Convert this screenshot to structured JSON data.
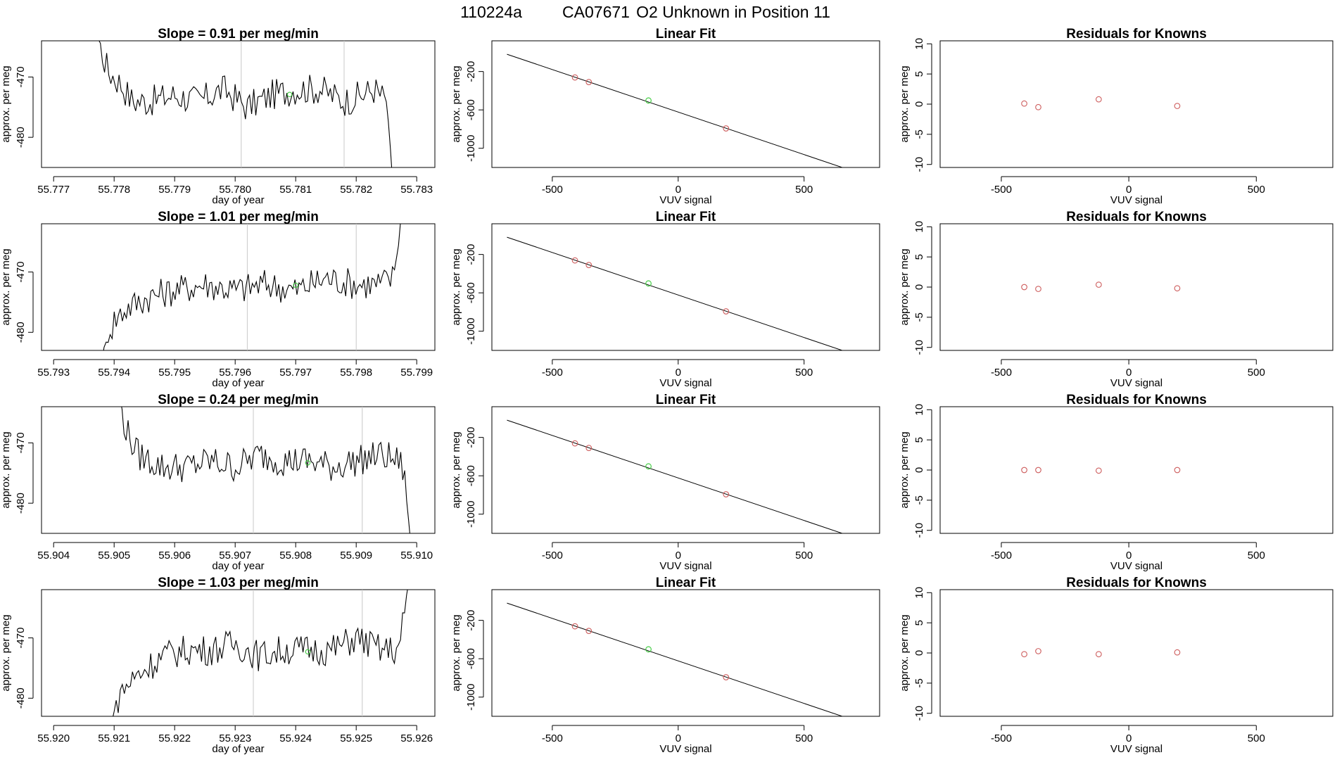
{
  "header": {
    "run": "110224a",
    "tank": "CA07671",
    "description": "O2 Unknown in Position  11"
  },
  "colors": {
    "trace": "#000000",
    "marker_vline": "#c8c8c8",
    "known_point": "#cd5c5c",
    "unknown_point": "#44cc44",
    "fit_line": "#000000"
  },
  "chart_data": [
    {
      "type": "line",
      "title": "Slope =  0.91  per meg/min",
      "xlabel": "day of year",
      "ylabel": "approx. per meg",
      "xlim": [
        55.7768,
        55.7833
      ],
      "ylim": [
        -485,
        -464
      ],
      "xticks": [
        "55.777",
        "55.778",
        "55.779",
        "55.780",
        "55.781",
        "55.782",
        "55.783"
      ],
      "yticks": [
        "-480",
        "-470"
      ],
      "x_start": 55.7775,
      "x_end": 55.7826,
      "reference_lines_x": [
        55.7801,
        55.7818
      ],
      "unknown_point": {
        "x": 55.7809,
        "y": -472.9
      },
      "series": [
        {
          "x": [
            55.7775,
            55.7778,
            55.7779,
            55.7781,
            55.7783,
            55.7786,
            55.779,
            55.7794,
            55.7798,
            55.7802,
            55.7806,
            55.781,
            55.7814,
            55.7818,
            55.7821,
            55.7823,
            55.7825,
            55.7826
          ],
          "y": [
            -455,
            -466,
            -469,
            -471,
            -474,
            -474,
            -473,
            -474,
            -472,
            -475,
            -473,
            -472,
            -472,
            -474,
            -473,
            -472,
            -474,
            -487
          ]
        }
      ]
    },
    {
      "type": "line",
      "title": "Slope =  1.01  per meg/min",
      "xlabel": "day of year",
      "ylabel": "approx. per meg",
      "xlim": [
        55.7928,
        55.7993
      ],
      "ylim": [
        -483,
        -462
      ],
      "xticks": [
        "55.793",
        "55.794",
        "55.795",
        "55.796",
        "55.797",
        "55.798",
        "55.799"
      ],
      "yticks": [
        "-480",
        "-470"
      ],
      "x_start": 55.7938,
      "x_end": 55.7988,
      "reference_lines_x": [
        55.7962,
        55.798
      ],
      "unknown_point": {
        "x": 55.797,
        "y": -472.2
      },
      "series": [
        {
          "x": [
            55.7938,
            55.794,
            55.7942,
            55.7946,
            55.795,
            55.7955,
            55.796,
            55.7965,
            55.797,
            55.7975,
            55.798,
            55.7984,
            55.7986,
            55.7987,
            55.7988
          ],
          "y": [
            -484,
            -478,
            -476,
            -474,
            -473,
            -472,
            -473,
            -472,
            -473,
            -471,
            -472,
            -472,
            -471,
            -465,
            -455
          ]
        }
      ]
    },
    {
      "type": "line",
      "title": "Slope =  0.24  per meg/min",
      "xlabel": "day of year",
      "ylabel": "approx. per meg",
      "xlim": [
        55.9038,
        55.9103
      ],
      "ylim": [
        -485,
        -464
      ],
      "xticks": [
        "55.904",
        "55.905",
        "55.906",
        "55.907",
        "55.908",
        "55.909",
        "55.910"
      ],
      "yticks": [
        "-480",
        "-470"
      ],
      "x_start": 55.905,
      "x_end": 55.9099,
      "reference_lines_x": [
        55.9073,
        55.9091
      ],
      "unknown_point": {
        "x": 55.9082,
        "y": -473.3
      },
      "series": [
        {
          "x": [
            55.905,
            55.9052,
            55.9054,
            55.9058,
            55.9062,
            55.9066,
            55.907,
            55.9074,
            55.9078,
            55.9082,
            55.9086,
            55.909,
            55.9094,
            55.9097,
            55.9098,
            55.9099
          ],
          "y": [
            -458,
            -468,
            -472,
            -474,
            -474,
            -473,
            -474,
            -472,
            -473,
            -473,
            -474,
            -473,
            -472,
            -473,
            -475,
            -487
          ]
        }
      ]
    },
    {
      "type": "line",
      "title": "Slope =  1.03  per meg/min",
      "xlabel": "day of year",
      "ylabel": "approx. per meg",
      "xlim": [
        55.9198,
        55.9263
      ],
      "ylim": [
        -483,
        -462
      ],
      "xticks": [
        "55.920",
        "55.921",
        "55.922",
        "55.923",
        "55.924",
        "55.925",
        "55.926"
      ],
      "yticks": [
        "-480",
        "-470"
      ],
      "x_start": 55.9209,
      "x_end": 55.9259,
      "reference_lines_x": [
        55.9233,
        55.9251
      ],
      "unknown_point": {
        "x": 55.9242,
        "y": -472.3
      },
      "series": [
        {
          "x": [
            55.9209,
            55.9211,
            55.9214,
            55.9218,
            55.9222,
            55.9226,
            55.923,
            55.9234,
            55.9238,
            55.9242,
            55.9246,
            55.925,
            55.9254,
            55.9257,
            55.9258,
            55.9259
          ],
          "y": [
            -485,
            -479,
            -476,
            -473,
            -472,
            -472,
            -471,
            -473,
            -472,
            -472,
            -472,
            -470,
            -472,
            -472,
            -466,
            -458
          ]
        }
      ]
    },
    {
      "type": "scatter",
      "title": "Linear Fit",
      "xlabel": "VUV signal",
      "ylabel": "approx. per meg",
      "xlim": [
        -740,
        800
      ],
      "ylim": [
        -1200,
        120
      ],
      "xticks": [
        "-500",
        "0",
        "500"
      ],
      "yticks": [
        "-1000",
        "-600",
        "-200"
      ],
      "fit_line": {
        "x": [
          -680,
          770
        ],
        "y": [
          -20,
          -1305
        ]
      },
      "known_points": [
        {
          "x": -410,
          "y": -262
        },
        {
          "x": -355,
          "y": -310
        },
        {
          "x": 190,
          "y": -793
        }
      ],
      "unknown_point": {
        "x": -118,
        "y": -502
      }
    },
    {
      "type": "scatter",
      "title": "Linear Fit",
      "xlabel": "VUV signal",
      "ylabel": "approx. per meg",
      "xlim": [
        -740,
        800
      ],
      "ylim": [
        -1200,
        120
      ],
      "xticks": [
        "-500",
        "0",
        "500"
      ],
      "yticks": [
        "-1000",
        "-600",
        "-200"
      ],
      "fit_line": {
        "x": [
          -680,
          770
        ],
        "y": [
          -20,
          -1305
        ]
      },
      "known_points": [
        {
          "x": -410,
          "y": -262
        },
        {
          "x": -355,
          "y": -310
        },
        {
          "x": 190,
          "y": -793
        }
      ],
      "unknown_point": {
        "x": -118,
        "y": -502
      }
    },
    {
      "type": "scatter",
      "title": "Linear Fit",
      "xlabel": "VUV signal",
      "ylabel": "approx. per meg",
      "xlim": [
        -740,
        800
      ],
      "ylim": [
        -1200,
        120
      ],
      "xticks": [
        "-500",
        "0",
        "500"
      ],
      "yticks": [
        "-1000",
        "-600",
        "-200"
      ],
      "fit_line": {
        "x": [
          -680,
          770
        ],
        "y": [
          -20,
          -1305
        ]
      },
      "known_points": [
        {
          "x": -410,
          "y": -262
        },
        {
          "x": -355,
          "y": -310
        },
        {
          "x": 190,
          "y": -793
        }
      ],
      "unknown_point": {
        "x": -118,
        "y": -502
      }
    },
    {
      "type": "scatter",
      "title": "Linear Fit",
      "xlabel": "VUV signal",
      "ylabel": "approx. per meg",
      "xlim": [
        -740,
        800
      ],
      "ylim": [
        -1200,
        120
      ],
      "xticks": [
        "-500",
        "0",
        "500"
      ],
      "yticks": [
        "-1000",
        "-600",
        "-200"
      ],
      "fit_line": {
        "x": [
          -680,
          770
        ],
        "y": [
          -20,
          -1305
        ]
      },
      "known_points": [
        {
          "x": -410,
          "y": -262
        },
        {
          "x": -355,
          "y": -310
        },
        {
          "x": 190,
          "y": -793
        }
      ],
      "unknown_point": {
        "x": -118,
        "y": -502
      }
    },
    {
      "type": "scatter",
      "title": "Residuals for Knowns",
      "xlabel": "VUV signal",
      "ylabel": "approx. per meg",
      "xlim": [
        -740,
        800
      ],
      "ylim": [
        -10.5,
        10.5
      ],
      "xticks": [
        "-500",
        "0",
        "500"
      ],
      "yticks": [
        "-10",
        "-5",
        "0",
        "5",
        "10"
      ],
      "points": [
        {
          "x": -410,
          "y": 0.1
        },
        {
          "x": -355,
          "y": -0.5
        },
        {
          "x": -118,
          "y": 0.8
        },
        {
          "x": 190,
          "y": -0.3
        }
      ]
    },
    {
      "type": "scatter",
      "title": "Residuals for Knowns",
      "xlabel": "VUV signal",
      "ylabel": "approx. per meg",
      "xlim": [
        -740,
        800
      ],
      "ylim": [
        -10.5,
        10.5
      ],
      "xticks": [
        "-500",
        "0",
        "500"
      ],
      "yticks": [
        "-10",
        "-5",
        "0",
        "5",
        "10"
      ],
      "points": [
        {
          "x": -410,
          "y": 0.0
        },
        {
          "x": -355,
          "y": -0.3
        },
        {
          "x": -118,
          "y": 0.4
        },
        {
          "x": 190,
          "y": -0.2
        }
      ]
    },
    {
      "type": "scatter",
      "title": "Residuals for Knowns",
      "xlabel": "VUV signal",
      "ylabel": "approx. per meg",
      "xlim": [
        -740,
        800
      ],
      "ylim": [
        -10.5,
        10.5
      ],
      "xticks": [
        "-500",
        "0",
        "500"
      ],
      "yticks": [
        "-10",
        "-5",
        "0",
        "5",
        "10"
      ],
      "points": [
        {
          "x": -410,
          "y": 0.0
        },
        {
          "x": -355,
          "y": 0.0
        },
        {
          "x": -118,
          "y": -0.1
        },
        {
          "x": 190,
          "y": 0.0
        }
      ]
    },
    {
      "type": "scatter",
      "title": "Residuals for Knowns",
      "xlabel": "VUV signal",
      "ylabel": "approx. per meg",
      "xlim": [
        -740,
        800
      ],
      "ylim": [
        -10.5,
        10.5
      ],
      "xticks": [
        "-500",
        "0",
        "500"
      ],
      "yticks": [
        "-10",
        "-5",
        "0",
        "5",
        "10"
      ],
      "points": [
        {
          "x": -410,
          "y": -0.2
        },
        {
          "x": -355,
          "y": 0.3
        },
        {
          "x": -118,
          "y": -0.2
        },
        {
          "x": 190,
          "y": 0.1
        }
      ]
    }
  ]
}
